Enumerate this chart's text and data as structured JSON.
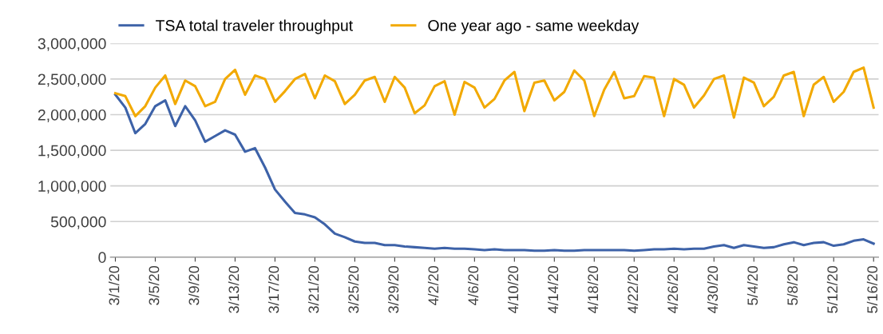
{
  "chart_data": {
    "type": "line",
    "categories": [
      "3/1/20",
      null,
      null,
      null,
      "3/5/20",
      null,
      null,
      null,
      "3/9/20",
      null,
      null,
      null,
      "3/13/20",
      null,
      null,
      null,
      "3/17/20",
      null,
      null,
      null,
      "3/21/20",
      null,
      null,
      null,
      "3/25/20",
      null,
      null,
      null,
      "3/29/20",
      null,
      null,
      null,
      "4/2/20",
      null,
      null,
      null,
      "4/6/20",
      null,
      null,
      null,
      "4/10/20",
      null,
      null,
      null,
      "4/14/20",
      null,
      null,
      null,
      "4/18/20",
      null,
      null,
      null,
      "4/22/20",
      null,
      null,
      null,
      "4/26/20",
      null,
      null,
      null,
      "4/30/20",
      null,
      null,
      null,
      "5/4/20",
      null,
      null,
      null,
      "5/8/20",
      null,
      null,
      null,
      "5/12/20",
      null,
      null,
      null,
      "5/16/20"
    ],
    "series": [
      {
        "name": "TSA total traveler throughput",
        "color": "#3d62a8",
        "values": [
          2280000,
          2100000,
          1740000,
          1870000,
          2120000,
          2200000,
          1840000,
          2120000,
          1920000,
          1620000,
          1700000,
          1780000,
          1720000,
          1480000,
          1530000,
          1260000,
          950000,
          780000,
          620000,
          600000,
          560000,
          460000,
          330000,
          280000,
          220000,
          200000,
          200000,
          170000,
          170000,
          150000,
          140000,
          130000,
          120000,
          130000,
          120000,
          120000,
          110000,
          100000,
          110000,
          100000,
          100000,
          100000,
          90000,
          90000,
          100000,
          90000,
          90000,
          100000,
          100000,
          100000,
          100000,
          100000,
          90000,
          100000,
          110000,
          110000,
          120000,
          110000,
          120000,
          120000,
          150000,
          170000,
          130000,
          170000,
          150000,
          130000,
          140000,
          180000,
          210000,
          170000,
          200000,
          210000,
          160000,
          180000,
          230000,
          250000,
          190000
        ]
      },
      {
        "name": "One year ago - same weekday",
        "color": "#f2a900",
        "values": [
          2300000,
          2260000,
          1980000,
          2120000,
          2380000,
          2550000,
          2150000,
          2480000,
          2400000,
          2120000,
          2180000,
          2500000,
          2630000,
          2280000,
          2550000,
          2500000,
          2180000,
          2330000,
          2500000,
          2570000,
          2230000,
          2550000,
          2470000,
          2150000,
          2280000,
          2480000,
          2530000,
          2180000,
          2530000,
          2380000,
          2020000,
          2130000,
          2400000,
          2470000,
          2000000,
          2460000,
          2380000,
          2100000,
          2220000,
          2480000,
          2600000,
          2050000,
          2450000,
          2480000,
          2200000,
          2320000,
          2620000,
          2480000,
          1980000,
          2350000,
          2600000,
          2230000,
          2260000,
          2540000,
          2520000,
          1980000,
          2500000,
          2420000,
          2100000,
          2270000,
          2500000,
          2550000,
          1960000,
          2520000,
          2450000,
          2120000,
          2250000,
          2550000,
          2600000,
          1980000,
          2420000,
          2530000,
          2180000,
          2320000,
          2600000,
          2660000,
          2100000
        ]
      }
    ],
    "ylim": [
      0,
      3000000
    ],
    "yticks": [
      {
        "value": 0,
        "label": "0"
      },
      {
        "value": 500000,
        "label": "500,000"
      },
      {
        "value": 1000000,
        "label": "1,000,000"
      },
      {
        "value": 1500000,
        "label": "1,500,000"
      },
      {
        "value": 2000000,
        "label": "2,000,000"
      },
      {
        "value": 2500000,
        "label": "2,500,000"
      },
      {
        "value": 3000000,
        "label": "3,000,000"
      }
    ],
    "grid": "y",
    "legend": "top left",
    "marker": "none",
    "line_style": "solid"
  }
}
